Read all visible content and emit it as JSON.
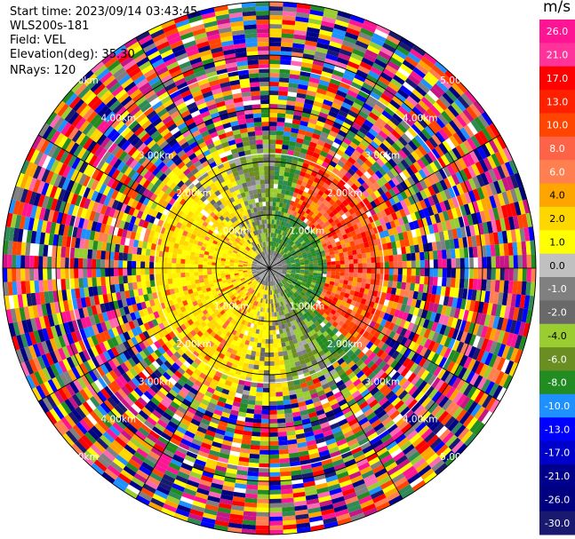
{
  "header": {
    "start_time": "Start time: 2023/09/14 03:43:45",
    "instrument": "WLS200s-181",
    "field": "Field: VEL",
    "elevation": "Elevation(deg): 35.30",
    "nrays": "NRays: 120"
  },
  "colorbar": {
    "unit": "m/s",
    "ticks": [
      "26.0",
      "21.0",
      "17.0",
      "13.0",
      "10.0",
      "8.0",
      "6.0",
      "4.0",
      "2.0",
      "1.0",
      "0.0",
      "-1.0",
      "-2.0",
      "-4.0",
      "-6.0",
      "-8.0",
      "-10.0",
      "-13.0",
      "-17.0",
      "-21.0",
      "-26.0",
      "-30.0"
    ],
    "colors": [
      "#ff1493",
      "#ff3399",
      "#ff0000",
      "#ff2000",
      "#ff4500",
      "#ff6347",
      "#ff7f50",
      "#ffa500",
      "#ffd700",
      "#ffff00",
      "#c0c0c0",
      "#808080",
      "#696969",
      "#9acd32",
      "#6b8e23",
      "#228b22",
      "#1e90ff",
      "#0000ff",
      "#0000cd",
      "#00008b",
      "#000080",
      "#191970"
    ]
  },
  "chart_data": {
    "type": "ppi",
    "field": "VEL",
    "unit": "m/s",
    "elevation_deg": 35.3,
    "nrays": 120,
    "range_ring_labels": [
      "1.00km",
      "2.00km",
      "3.00km",
      "4.00km",
      "5.00km"
    ],
    "range_rings_km": [
      1,
      2,
      3,
      4,
      5
    ],
    "max_range_km": 5.0,
    "azimuth_spokes_deg": [
      0,
      30,
      60,
      90,
      120,
      150,
      180,
      210,
      240,
      270,
      300,
      330
    ]
  }
}
